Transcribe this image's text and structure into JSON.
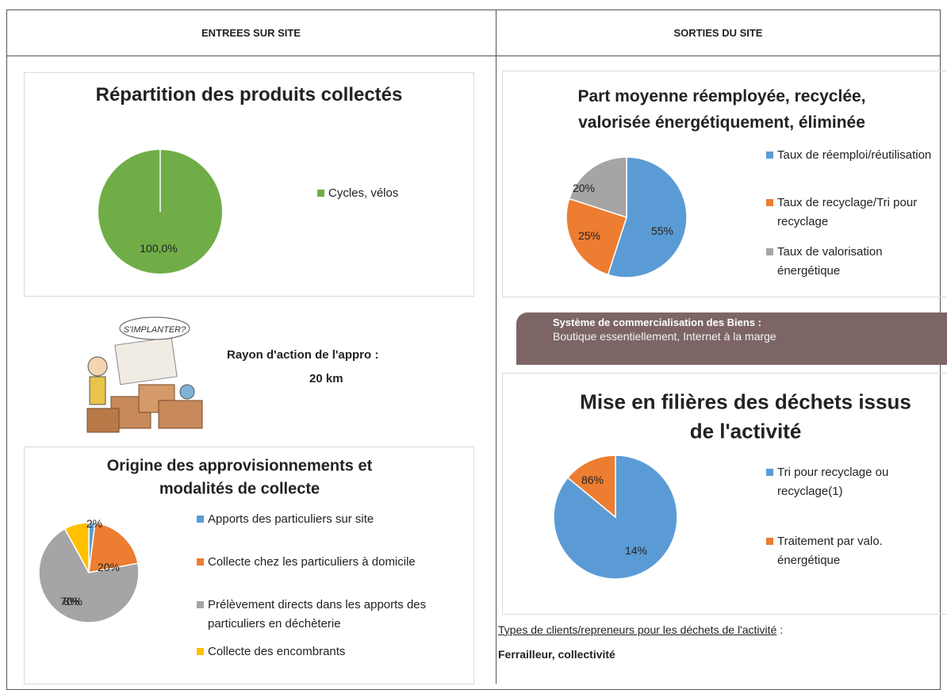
{
  "header": {
    "left": "ENTREES SUR SITE",
    "right": "SORTIES DU SITE"
  },
  "chart_data": [
    {
      "type": "pie",
      "title": [
        "Répartition des produits collectés"
      ],
      "categories": [
        "Cycles, vélos"
      ],
      "values": [
        100
      ],
      "value_labels": [
        "100,0%"
      ],
      "colors": [
        "#70ad47"
      ]
    },
    {
      "type": "pie",
      "title": [
        "Part moyenne réemployée, recyclée,",
        "valorisée énergétiquement, éliminée"
      ],
      "categories": [
        "Taux de réemploi/réutilisation",
        "Taux de recyclage/Tri pour recyclage",
        "Taux de valorisation énergétique"
      ],
      "values": [
        55,
        25,
        20
      ],
      "value_labels": [
        "55%",
        "25%",
        "20%"
      ],
      "colors": [
        "#5b9bd5",
        "#ed7d31",
        "#a5a5a5"
      ]
    },
    {
      "type": "pie",
      "title": [
        "Origine des approvisionnements et",
        "modalités de collecte"
      ],
      "categories": [
        "Apports des particuliers sur site",
        "Collecte chez les particuliers à domicile",
        "Prélèvement directs dans les apports  des particuliers en déchèterie",
        "Collecte des encombrants"
      ],
      "values": [
        2,
        20,
        70,
        8
      ],
      "value_labels": [
        "2%",
        "20%",
        "70%",
        "8%"
      ],
      "colors": [
        "#5b9bd5",
        "#ed7d31",
        "#a5a5a5",
        "#ffc000"
      ]
    },
    {
      "type": "pie",
      "title": [
        "Mise en filières des déchets issus",
        "de l'activité"
      ],
      "categories": [
        "Tri pour recyclage ou recyclage(1)",
        "Traitement par valo. énergétique"
      ],
      "values": [
        86,
        14
      ],
      "value_labels": [
        "86%",
        "14%"
      ],
      "colors": [
        "#5b9bd5",
        "#ed7d31"
      ]
    }
  ],
  "illustration": "S'IMPLANTER?",
  "appro": {
    "label": "Rayon d'action de l'appro :",
    "value": "20 km"
  },
  "commercialisation": {
    "label": "Système de commercialisation des Biens :",
    "value": "Boutique essentiellement, Internet à la marge"
  },
  "clients": {
    "label": "Types de clients/repreneurs pour les déchets de l'activité",
    "separator": ":",
    "value": "Ferrailleur, collectivité"
  }
}
